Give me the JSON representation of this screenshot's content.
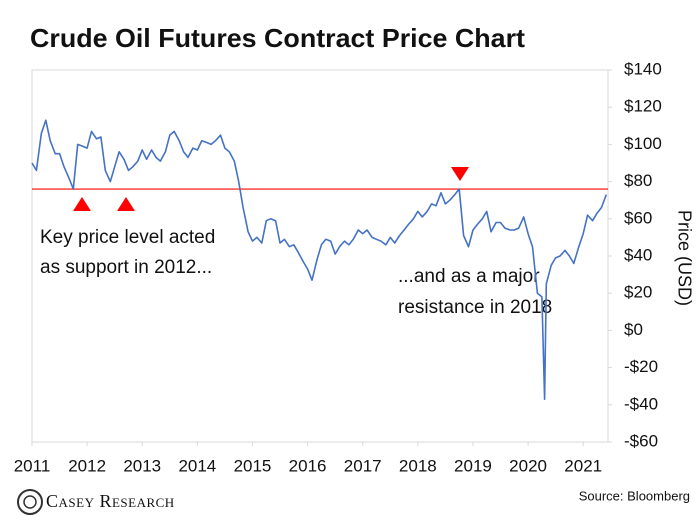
{
  "chart_data": {
    "type": "line",
    "title": "Crude Oil Futures Contract Price Chart",
    "y_axis_label": "Price (USD)",
    "source": "Source: Bloomberg",
    "logo": "Casey Research",
    "annotations": [
      {
        "lines": [
          "Key price level acted",
          "as support in 2012..."
        ]
      },
      {
        "lines": [
          "...and as a major",
          "resistance in 2018"
        ]
      }
    ],
    "reference_line": {
      "value": 76,
      "color": "#ff0000"
    },
    "marker_color": "#ff0000",
    "xlim": [
      2011,
      2021.45
    ],
    "xticks": [
      2011,
      2012,
      2013,
      2014,
      2015,
      2016,
      2017,
      2018,
      2019,
      2020,
      2021
    ],
    "ylim": [
      -60,
      140
    ],
    "yticks": [
      {
        "value": -60,
        "label": "-$60"
      },
      {
        "value": -40,
        "label": "-$40"
      },
      {
        "value": -20,
        "label": "-$20"
      },
      {
        "value": 0,
        "label": "$0"
      },
      {
        "value": 20,
        "label": "$20"
      },
      {
        "value": 40,
        "label": "$40"
      },
      {
        "value": 60,
        "label": "$60"
      },
      {
        "value": 80,
        "label": "$80"
      },
      {
        "value": 100,
        "label": "$100"
      },
      {
        "value": 120,
        "label": "$120"
      },
      {
        "value": 140,
        "label": "$140"
      }
    ],
    "grid": false,
    "x": [
      2011,
      2011.08,
      2011.17,
      2011.25,
      2011.33,
      2011.42,
      2011.5,
      2011.58,
      2011.67,
      2011.75,
      2011.83,
      2011.92,
      2012,
      2012.08,
      2012.17,
      2012.25,
      2012.33,
      2012.42,
      2012.5,
      2012.58,
      2012.67,
      2012.75,
      2012.83,
      2012.92,
      2013,
      2013.08,
      2013.17,
      2013.25,
      2013.33,
      2013.42,
      2013.5,
      2013.58,
      2013.67,
      2013.75,
      2013.83,
      2013.92,
      2014,
      2014.08,
      2014.17,
      2014.25,
      2014.33,
      2014.42,
      2014.5,
      2014.58,
      2014.67,
      2014.75,
      2014.83,
      2014.92,
      2015,
      2015.08,
      2015.17,
      2015.25,
      2015.33,
      2015.42,
      2015.5,
      2015.58,
      2015.67,
      2015.75,
      2015.83,
      2015.92,
      2016,
      2016.08,
      2016.17,
      2016.25,
      2016.33,
      2016.42,
      2016.5,
      2016.58,
      2016.67,
      2016.75,
      2016.83,
      2016.92,
      2017,
      2017.08,
      2017.17,
      2017.25,
      2017.33,
      2017.42,
      2017.5,
      2017.58,
      2017.67,
      2017.75,
      2017.83,
      2017.92,
      2018,
      2018.08,
      2018.17,
      2018.25,
      2018.33,
      2018.42,
      2018.5,
      2018.58,
      2018.67,
      2018.75,
      2018.83,
      2018.92,
      2019,
      2019.08,
      2019.17,
      2019.25,
      2019.33,
      2019.42,
      2019.5,
      2019.58,
      2019.67,
      2019.75,
      2019.83,
      2019.92,
      2020,
      2020.08,
      2020.17,
      2020.25,
      2020.3,
      2020.33,
      2020.42,
      2020.5,
      2020.58,
      2020.67,
      2020.75,
      2020.83,
      2020.92,
      2021,
      2021.08,
      2021.17,
      2021.25,
      2021.33,
      2021.42
    ],
    "series": [
      {
        "name": "Crude Oil Futures",
        "color": "#4472c4",
        "values": [
          90,
          86,
          106,
          113,
          102,
          95,
          95,
          88,
          82,
          76,
          100,
          99,
          98,
          107,
          103,
          104,
          86,
          80,
          88,
          96,
          92,
          86,
          88,
          91,
          97,
          92,
          97,
          93,
          91,
          96,
          105,
          107,
          102,
          96,
          93,
          98,
          97,
          102,
          101,
          100,
          102,
          105,
          98,
          96,
          91,
          80,
          66,
          53,
          48,
          50,
          47,
          59,
          60,
          59,
          47,
          49,
          45,
          46,
          42,
          37,
          33,
          27,
          38,
          46,
          49,
          48,
          41,
          45,
          48,
          46,
          49,
          54,
          52,
          54,
          50,
          49,
          48,
          46,
          50,
          47,
          51,
          54,
          57,
          60,
          64,
          61,
          64,
          68,
          67,
          74,
          68,
          70,
          73,
          76,
          51,
          45,
          54,
          57,
          60,
          64,
          53,
          58,
          58,
          55,
          54,
          54,
          55,
          61,
          52,
          45,
          20,
          18,
          -37,
          25,
          35,
          39,
          40,
          43,
          40,
          36,
          45,
          52,
          62,
          59,
          63,
          66,
          73
        ]
      }
    ]
  }
}
